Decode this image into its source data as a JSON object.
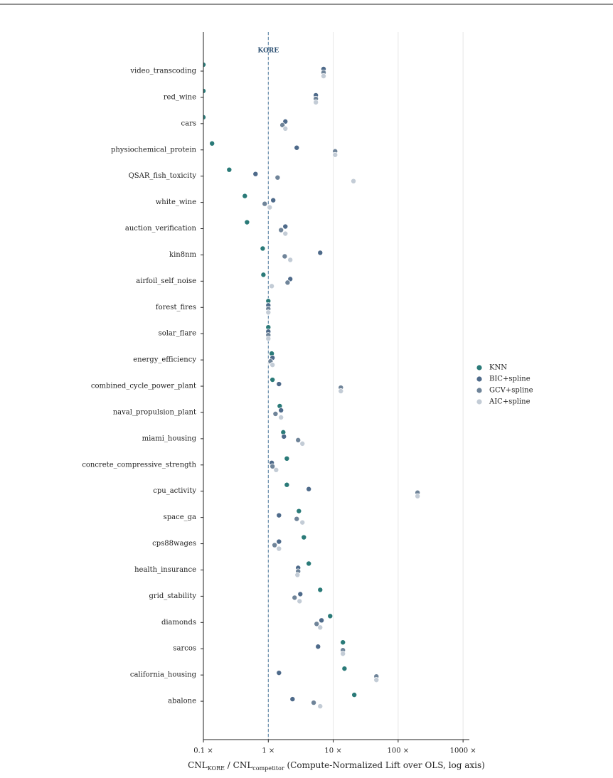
{
  "chart_data": {
    "type": "dot",
    "categories": [
      "video_transcoding",
      "red_wine",
      "cars",
      "physiochemical_protein",
      "QSAR_fish_toxicity",
      "white_wine",
      "auction_verification",
      "kin8nm",
      "airfoil_self_noise",
      "forest_fires",
      "solar_flare",
      "energy_efficiency",
      "combined_cycle_power_plant",
      "naval_propulsion_plant",
      "miami_housing",
      "concrete_compressive_strength",
      "cpu_activity",
      "space_ga",
      "cps88wages",
      "health_insurance",
      "grid_stability",
      "diamonds",
      "sarcos",
      "california_housing",
      "abalone"
    ],
    "series": [
      {
        "name": "KNN",
        "color": "#2a7a78",
        "values": [
          0.1,
          0.1,
          0.1,
          0.136,
          0.25,
          0.435,
          0.47,
          0.82,
          0.84,
          1.0,
          1.0,
          1.13,
          1.16,
          1.5,
          1.7,
          1.93,
          1.93,
          2.96,
          3.53,
          4.2,
          6.3,
          8.97,
          14.1,
          14.9,
          21.1
        ]
      },
      {
        "name": "BIC+spline",
        "color": "#4e6a8a",
        "values": [
          7.1,
          5.4,
          1.83,
          2.74,
          0.635,
          1.19,
          1.83,
          6.3,
          2.18,
          1.0,
          1.0,
          1.16,
          1.46,
          1.57,
          1.74,
          1.13,
          4.2,
          1.46,
          1.46,
          2.88,
          3.11,
          6.6,
          5.84,
          1.46,
          2.36
        ]
      },
      {
        "name": "GCV+spline",
        "color": "#6f8499",
        "values": [
          7.1,
          5.4,
          1.65,
          10.7,
          1.39,
          0.88,
          1.57,
          1.79,
          1.98,
          1.0,
          1.0,
          1.08,
          13.1,
          1.29,
          2.88,
          1.16,
          199,
          2.74,
          1.25,
          2.88,
          2.54,
          5.55,
          14.1,
          46.2,
          5.0
        ]
      },
      {
        "name": "AIC+spline",
        "color": "#c3ccd6",
        "values": [
          7.1,
          5.4,
          1.83,
          10.7,
          20.5,
          1.05,
          1.83,
          2.18,
          1.13,
          1.0,
          1.0,
          1.16,
          13.1,
          1.57,
          3.35,
          1.32,
          199,
          3.35,
          1.46,
          2.81,
          3.03,
          6.3,
          14.1,
          46.2,
          6.3
        ]
      }
    ],
    "xlabel": [
      "CNL",
      "KORE",
      " / CNL",
      "competitor",
      "  (Compute-Normalized Lift over OLS, log axis)"
    ],
    "log_x": true,
    "xlim": [
      0.1,
      1250
    ],
    "xticks": [
      {
        "value": 0.1,
        "label": "0.1 ×"
      },
      {
        "value": 1,
        "label": "1 ×"
      },
      {
        "value": 10,
        "label": "10 ×"
      },
      {
        "value": 100,
        "label": "100 ×"
      },
      {
        "value": 1000,
        "label": "1000 ×"
      }
    ],
    "grid": true,
    "reference": {
      "value": 1,
      "label": "KORE"
    },
    "legend": "right"
  }
}
